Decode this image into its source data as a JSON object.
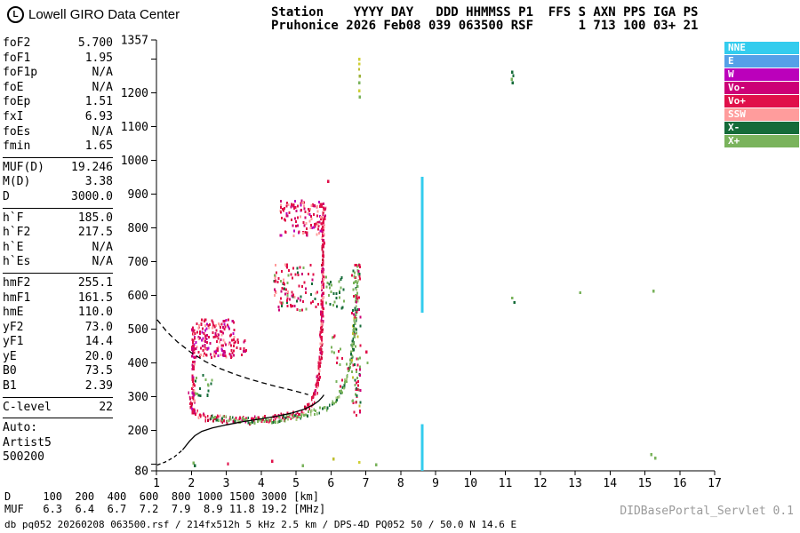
{
  "header": {
    "logo_letter": "L",
    "brand": "Lowell GIRO Data Center",
    "station_line1": "Station    YYYY DAY   DDD HHMMSS P1  FFS S AXN PPS IGA PS",
    "station_line2": "Pruhonice 2026 Feb08 039 063500 RSF      1 713 100 03+ 21"
  },
  "params": {
    "groups": [
      {
        "rows": [
          [
            "foF2",
            "5.700"
          ],
          [
            "foF1",
            "1.95"
          ],
          [
            "foF1p",
            "N/A"
          ],
          [
            "foE",
            "N/A"
          ],
          [
            "foEp",
            "1.51"
          ],
          [
            "fxI",
            "6.93"
          ],
          [
            "foEs",
            "N/A"
          ],
          [
            "fmin",
            "1.65"
          ]
        ]
      },
      {
        "rows": [
          [
            "MUF(D)",
            "19.246"
          ],
          [
            "M(D)",
            "3.38"
          ],
          [
            "D",
            "3000.0"
          ]
        ]
      },
      {
        "rows": [
          [
            "h`F",
            "185.0"
          ],
          [
            "h`F2",
            "217.5"
          ],
          [
            "h`E",
            "N/A"
          ],
          [
            "h`Es",
            "N/A"
          ]
        ]
      },
      {
        "rows": [
          [
            "hmF2",
            "255.1"
          ],
          [
            "hmF1",
            "161.5"
          ],
          [
            "hmE",
            "110.0"
          ],
          [
            "yF2",
            "73.0"
          ],
          [
            "yF1",
            "14.4"
          ],
          [
            "yE",
            "20.0"
          ],
          [
            "B0",
            "73.5"
          ],
          [
            "B1",
            "2.39"
          ]
        ]
      },
      {
        "rows": [
          [
            "C-level",
            "22"
          ]
        ]
      }
    ],
    "auto_lines": [
      "Auto:",
      "Artist5",
      "500200"
    ]
  },
  "legend": {
    "items": [
      {
        "label": "NNE",
        "color": "#33CCEE"
      },
      {
        "label": "E",
        "color": "#55A0E8"
      },
      {
        "label": "W",
        "color": "#BB00BB"
      },
      {
        "label": "Vo-",
        "color": "#CC0077"
      },
      {
        "label": "Vo+",
        "color": "#E0104A"
      },
      {
        "label": "SSW",
        "color": "#FF9C9C"
      },
      {
        "label": "X-",
        "color": "#156B39"
      },
      {
        "label": "X+",
        "color": "#7AB35C"
      }
    ]
  },
  "chart_data": {
    "type": "scatter",
    "title": "Digisonde ionogram, Pruhonice 2026 Feb08 063500",
    "xlabel": "[MHz]",
    "ylabel": "[km]",
    "x_range": [
      1,
      17
    ],
    "y_range": [
      80,
      1357
    ],
    "x_ticks": [
      1,
      2,
      3,
      4,
      5,
      6,
      7,
      8,
      9,
      10,
      11,
      12,
      13,
      14,
      15,
      16,
      17
    ],
    "y_ticks": [
      {
        "v": 1357,
        "label": "1357"
      },
      {
        "v": 1300,
        "label": ""
      },
      {
        "v": 1200,
        "label": "1200"
      },
      {
        "v": 1100,
        "label": "1100"
      },
      {
        "v": 1000,
        "label": "1000"
      },
      {
        "v": 900,
        "label": "900"
      },
      {
        "v": 800,
        "label": "800"
      },
      {
        "v": 700,
        "label": "700"
      },
      {
        "v": 600,
        "label": "600"
      },
      {
        "v": 500,
        "label": "500"
      },
      {
        "v": 400,
        "label": "400"
      },
      {
        "v": 300,
        "label": "300"
      },
      {
        "v": 200,
        "label": "200"
      },
      {
        "v": 100,
        "label": ""
      },
      {
        "v": 80,
        "label": "80"
      }
    ],
    "bands": [
      {
        "name": "F2-ordinary-trace",
        "step": 1.1,
        "vspread": 11,
        "colors": [
          [
            "#E0104A",
            0.6
          ],
          [
            "#C00030",
            0.14
          ],
          [
            "#FF9C9C",
            0.13
          ],
          [
            "#CC0077",
            0.13
          ]
        ],
        "points": [
          [
            1.95,
            300
          ],
          [
            2.0,
            272
          ],
          [
            2.1,
            254
          ],
          [
            2.25,
            243
          ],
          [
            2.5,
            236
          ],
          [
            3.0,
            231
          ],
          [
            3.6,
            229
          ],
          [
            4.2,
            232
          ],
          [
            4.7,
            239
          ],
          [
            5.0,
            247
          ],
          [
            5.2,
            257
          ],
          [
            5.35,
            270
          ],
          [
            5.5,
            292
          ],
          [
            5.6,
            322
          ],
          [
            5.66,
            365
          ],
          [
            5.71,
            425
          ],
          [
            5.74,
            505
          ],
          [
            5.76,
            600
          ],
          [
            5.78,
            720
          ],
          [
            5.79,
            862
          ]
        ]
      },
      {
        "name": "F2-extraordinary-trace",
        "step": 1.6,
        "vspread": 9,
        "colors": [
          [
            "#7AB35C",
            0.58
          ],
          [
            "#156B39",
            0.3
          ],
          [
            "#A9C882",
            0.12
          ]
        ],
        "points": [
          [
            2.55,
            243
          ],
          [
            2.9,
            235
          ],
          [
            3.3,
            230
          ],
          [
            3.9,
            229
          ],
          [
            4.5,
            233
          ],
          [
            5.0,
            239
          ],
          [
            5.4,
            248
          ],
          [
            5.75,
            260
          ],
          [
            6.05,
            277
          ],
          [
            6.25,
            300
          ],
          [
            6.42,
            338
          ],
          [
            6.55,
            392
          ],
          [
            6.65,
            462
          ],
          [
            6.72,
            552
          ],
          [
            6.76,
            648
          ],
          [
            6.78,
            700
          ]
        ]
      }
    ],
    "clusters": [
      {
        "name": "retardation-streak",
        "box": [
          2.02,
          250,
          2.1,
          505
        ],
        "n": 80,
        "colors": [
          [
            "#E0104A",
            0.5
          ],
          [
            "#CC0077",
            0.22
          ],
          [
            "#BB00BB",
            0.16
          ],
          [
            "#FF9C9C",
            0.12
          ]
        ]
      },
      {
        "name": "spread-patch",
        "box": [
          2.08,
          415,
          3.25,
          528
        ],
        "n": 150,
        "colors": [
          [
            "#E0104A",
            0.42
          ],
          [
            "#FF9C9C",
            0.2
          ],
          [
            "#CC0077",
            0.2
          ],
          [
            "#BB00BB",
            0.18
          ]
        ]
      },
      {
        "name": "spread-tail",
        "box": [
          3.2,
          420,
          3.6,
          468
        ],
        "n": 14,
        "colors": [
          [
            "#E0104A",
            0.6
          ],
          [
            "#CC0077",
            0.4
          ]
        ]
      },
      {
        "name": "second-hop-echo",
        "box": [
          4.35,
          555,
          5.65,
          695
        ],
        "n": 95,
        "colors": [
          [
            "#E0104A",
            0.45
          ],
          [
            "#FF9C9C",
            0.15
          ],
          [
            "#CC0077",
            0.12
          ],
          [
            "#7AB35C",
            0.17
          ],
          [
            "#156B39",
            0.11
          ]
        ]
      },
      {
        "name": "top-echo",
        "box": [
          4.55,
          775,
          5.85,
          882
        ],
        "n": 125,
        "colors": [
          [
            "#E0104A",
            0.5
          ],
          [
            "#FF9C9C",
            0.22
          ],
          [
            "#CC0077",
            0.16
          ],
          [
            "#BB00BB",
            0.12
          ]
        ]
      },
      {
        "name": "x-top-echo",
        "box": [
          5.85,
          560,
          6.4,
          655
        ],
        "n": 28,
        "colors": [
          [
            "#7AB35C",
            0.6
          ],
          [
            "#156B39",
            0.4
          ]
        ]
      },
      {
        "name": "x-asymptote-column",
        "box": [
          6.6,
          240,
          6.85,
          700
        ],
        "n": 85,
        "colors": [
          [
            "#7AB35C",
            0.34
          ],
          [
            "#156B39",
            0.14
          ],
          [
            "#E0104A",
            0.32
          ],
          [
            "#CC0077",
            0.12
          ],
          [
            "#BFBF30",
            0.08
          ]
        ]
      },
      {
        "name": "low-green-patch",
        "box": [
          2.1,
          300,
          2.6,
          375
        ],
        "n": 16,
        "colors": [
          [
            "#7AB35C",
            0.55
          ],
          [
            "#156B39",
            0.45
          ]
        ]
      },
      {
        "name": "mid-noise",
        "box": [
          6.0,
          330,
          6.5,
          480
        ],
        "n": 18,
        "colors": [
          [
            "#7AB35C",
            0.5
          ],
          [
            "#E0104A",
            0.5
          ]
        ]
      }
    ],
    "points": [
      [
        6.82,
        1300,
        "#CFCF35"
      ],
      [
        6.82,
        1286,
        "#CFCF35"
      ],
      [
        6.81,
        1270,
        "#BFBF30"
      ],
      [
        6.83,
        1250,
        "#9DB23A"
      ],
      [
        6.82,
        1230,
        "#7AB35C"
      ],
      [
        6.82,
        1206,
        "#CFCF35"
      ],
      [
        6.83,
        1188,
        "#7AB35C"
      ],
      [
        11.2,
        1262,
        "#156B39"
      ],
      [
        11.23,
        1251,
        "#156B39"
      ],
      [
        11.18,
        1241,
        "#7AB35C"
      ],
      [
        11.21,
        1230,
        "#156B39"
      ],
      [
        11.2,
        592,
        "#7AB35C"
      ],
      [
        11.26,
        579,
        "#156B39"
      ],
      [
        13.15,
        608,
        "#7AB35C"
      ],
      [
        15.25,
        612,
        "#7AB35C"
      ],
      [
        15.18,
        128,
        "#7AB35C"
      ],
      [
        15.3,
        117,
        "#7AB35C"
      ],
      [
        7.02,
        432,
        "#E0104A"
      ],
      [
        7.05,
        400,
        "#7AB35C"
      ],
      [
        5.92,
        938,
        "#E0104A"
      ],
      [
        2.06,
        103,
        "#7AB35C"
      ],
      [
        2.1,
        95,
        "#156B39"
      ],
      [
        3.05,
        100,
        "#E0104A"
      ],
      [
        4.32,
        108,
        "#E0104A"
      ],
      [
        5.2,
        95,
        "#7AB35C"
      ],
      [
        6.08,
        115,
        "#BFBF30"
      ],
      [
        6.82,
        105,
        "#CFCF35"
      ],
      [
        7.3,
        98,
        "#7AB35C"
      ]
    ],
    "vlines": [
      {
        "f": 8.62,
        "h1": 549,
        "h2": 952,
        "color": "#33CCEE",
        "w": 3
      },
      {
        "f": 8.62,
        "h1": 80,
        "h2": 218,
        "color": "#33CCEE",
        "w": 3
      }
    ],
    "curves": [
      {
        "name": "transmission-curve",
        "style": "dashed",
        "points": [
          [
            1.02,
            528
          ],
          [
            1.3,
            492
          ],
          [
            1.6,
            462
          ],
          [
            2.0,
            430
          ],
          [
            2.4,
            404
          ],
          [
            2.8,
            384
          ],
          [
            3.2,
            368
          ],
          [
            3.6,
            354
          ],
          [
            4.0,
            342
          ],
          [
            4.4,
            331
          ],
          [
            4.8,
            321
          ],
          [
            5.1,
            313
          ],
          [
            5.35,
            306
          ]
        ]
      },
      {
        "name": "profile-below-fmin",
        "style": "dashed-short",
        "points": [
          [
            1.02,
            97
          ],
          [
            1.25,
            106
          ],
          [
            1.5,
            120
          ],
          [
            1.75,
            142
          ]
        ]
      },
      {
        "name": "true-height-profile",
        "style": "solid",
        "points": [
          [
            1.75,
            142
          ],
          [
            1.95,
            168
          ],
          [
            2.1,
            184
          ],
          [
            2.3,
            197
          ],
          [
            2.6,
            207
          ],
          [
            3.0,
            216
          ],
          [
            3.5,
            226
          ],
          [
            4.0,
            234
          ],
          [
            4.5,
            243
          ],
          [
            4.9,
            252
          ],
          [
            5.25,
            263
          ],
          [
            5.5,
            276
          ],
          [
            5.65,
            287
          ],
          [
            5.75,
            298
          ],
          [
            5.8,
            305
          ]
        ]
      }
    ]
  },
  "bottom": {
    "d_row": {
      "label": "D",
      "values": [
        "100",
        "200",
        "400",
        "600",
        "800",
        "1000",
        "1500",
        "3000"
      ],
      "unit": "[km]"
    },
    "muf_row": {
      "label": "MUF",
      "values": [
        "6.3",
        "6.4",
        "6.7",
        "7.2",
        "7.9",
        "8.9",
        "11.8",
        "19.2"
      ],
      "unit": "[MHz]"
    }
  },
  "footer": {
    "info": "db pq052 20260208 063500.rsf / 214fx512h 5 kHz 2.5 km / DPS-4D PQ052 50 / 50.0 N 14.6 E",
    "servlet": "DIDBasePortal_Servlet 0.1"
  }
}
